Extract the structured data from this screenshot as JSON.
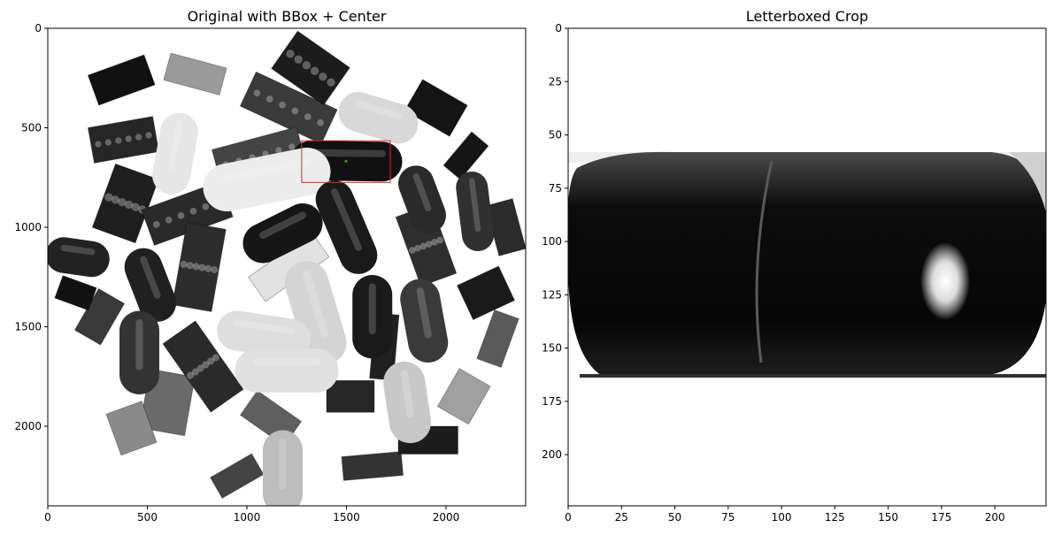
{
  "chart_data": [
    {
      "type": "image",
      "title": "Original with BBox + Center",
      "x_ticks": [
        0,
        500,
        1000,
        1500,
        2000
      ],
      "y_ticks": [
        0,
        500,
        1000,
        1500,
        2000
      ],
      "xlim": [
        0,
        2400
      ],
      "ylim": [
        2400,
        0
      ],
      "bbox": {
        "x_min": 1275,
        "y_min": 565,
        "x_max": 1720,
        "y_max": 775,
        "color": "#d62728"
      },
      "center": {
        "x": 1498,
        "y": 668,
        "color": "#2ca02c"
      },
      "objects": [
        {
          "kind": "capsule",
          "x1": 1320,
          "y1": 665,
          "x2": 1680,
          "y2": 670,
          "w": 200,
          "tone": "#111111"
        },
        {
          "kind": "capsule",
          "x1": 1560,
          "y1": 420,
          "x2": 1760,
          "y2": 480,
          "w": 200,
          "tone": "#d8d8d8"
        },
        {
          "kind": "capsule",
          "x1": 660,
          "y1": 520,
          "x2": 620,
          "y2": 740,
          "w": 190,
          "tone": "#e6e6e6"
        },
        {
          "kind": "capsule",
          "x1": 900,
          "y1": 800,
          "x2": 1300,
          "y2": 720,
          "w": 240,
          "tone": "#ececec"
        },
        {
          "kind": "capsule",
          "x1": 1080,
          "y1": 1080,
          "x2": 1280,
          "y2": 980,
          "w": 200,
          "tone": "#161616"
        },
        {
          "kind": "capsule",
          "x1": 1440,
          "y1": 860,
          "x2": 1560,
          "y2": 1140,
          "w": 190,
          "tone": "#1a1a1a"
        },
        {
          "kind": "capsule",
          "x1": 1850,
          "y1": 780,
          "x2": 1910,
          "y2": 940,
          "w": 180,
          "tone": "#2a2a2a"
        },
        {
          "kind": "capsule",
          "x1": 2130,
          "y1": 800,
          "x2": 2160,
          "y2": 1040,
          "w": 160,
          "tone": "#303030"
        },
        {
          "kind": "capsule",
          "x1": 80,
          "y1": 1140,
          "x2": 220,
          "y2": 1160,
          "w": 180,
          "tone": "#222222"
        },
        {
          "kind": "capsule",
          "x1": 480,
          "y1": 1200,
          "x2": 550,
          "y2": 1380,
          "w": 190,
          "tone": "#202020"
        },
        {
          "kind": "capsule",
          "x1": 1300,
          "y1": 1280,
          "x2": 1390,
          "y2": 1580,
          "w": 220,
          "tone": "#d4d4d4"
        },
        {
          "kind": "capsule",
          "x1": 1630,
          "y1": 1340,
          "x2": 1630,
          "y2": 1560,
          "w": 200,
          "tone": "#1a1a1a"
        },
        {
          "kind": "capsule",
          "x1": 1870,
          "y1": 1360,
          "x2": 1910,
          "y2": 1580,
          "w": 200,
          "tone": "#3a3a3a"
        },
        {
          "kind": "capsule",
          "x1": 950,
          "y1": 1520,
          "x2": 1220,
          "y2": 1560,
          "w": 200,
          "tone": "#dedede"
        },
        {
          "kind": "capsule",
          "x1": 1050,
          "y1": 1720,
          "x2": 1350,
          "y2": 1720,
          "w": 220,
          "tone": "#e0e0e0"
        },
        {
          "kind": "capsule",
          "x1": 460,
          "y1": 1520,
          "x2": 460,
          "y2": 1740,
          "w": 200,
          "tone": "#333333"
        },
        {
          "kind": "capsule",
          "x1": 1790,
          "y1": 1780,
          "x2": 1820,
          "y2": 1980,
          "w": 210,
          "tone": "#c8c8c8"
        },
        {
          "kind": "capsule",
          "x1": 1180,
          "y1": 2120,
          "x2": 1180,
          "y2": 2340,
          "w": 200,
          "tone": "#bdbdbd"
        },
        {
          "kind": "box",
          "cx": 390,
          "cy": 880,
          "w": 230,
          "h": 340,
          "rot": 20,
          "tone": "#1e1e1e"
        },
        {
          "kind": "box",
          "cx": 700,
          "cy": 930,
          "w": 420,
          "h": 190,
          "rot": -20,
          "tone": "#2a2a2a"
        },
        {
          "kind": "box",
          "cx": 1210,
          "cy": 400,
          "w": 450,
          "h": 190,
          "rot": 25,
          "tone": "#3a3a3a"
        },
        {
          "kind": "box",
          "cx": 1060,
          "cy": 640,
          "w": 440,
          "h": 180,
          "rot": -15,
          "tone": "#444444"
        },
        {
          "kind": "box",
          "cx": 380,
          "cy": 560,
          "w": 330,
          "h": 180,
          "rot": -10,
          "tone": "#262626"
        },
        {
          "kind": "box",
          "cx": 760,
          "cy": 1200,
          "w": 200,
          "h": 420,
          "rot": 10,
          "tone": "#2c2c2c"
        },
        {
          "kind": "box",
          "cx": 1210,
          "cy": 1200,
          "w": 390,
          "h": 150,
          "rot": -35,
          "tone": "#e2e2e2"
        },
        {
          "kind": "box",
          "cx": 1900,
          "cy": 1090,
          "w": 190,
          "h": 370,
          "rot": -20,
          "tone": "#2e2e2e"
        },
        {
          "kind": "box",
          "cx": 780,
          "cy": 1700,
          "w": 200,
          "h": 420,
          "rot": -35,
          "tone": "#2a2a2a"
        },
        {
          "kind": "box",
          "cx": 1320,
          "cy": 200,
          "w": 320,
          "h": 230,
          "rot": 35,
          "tone": "#1c1c1c"
        },
        {
          "kind": "plate",
          "cx": 370,
          "cy": 260,
          "w": 300,
          "h": 160,
          "rot": -20,
          "tone": "#111111"
        },
        {
          "kind": "plate",
          "cx": 740,
          "cy": 230,
          "w": 290,
          "h": 140,
          "rot": 15,
          "tone": "#9a9a9a"
        },
        {
          "kind": "plate",
          "cx": 1950,
          "cy": 400,
          "w": 260,
          "h": 180,
          "rot": 30,
          "tone": "#141414"
        },
        {
          "kind": "plate",
          "cx": 2200,
          "cy": 1330,
          "w": 230,
          "h": 190,
          "rot": -25,
          "tone": "#1a1a1a"
        },
        {
          "kind": "plate",
          "cx": 2260,
          "cy": 1560,
          "w": 130,
          "h": 260,
          "rot": 20,
          "tone": "#5a5a5a"
        },
        {
          "kind": "plate",
          "cx": 600,
          "cy": 1880,
          "w": 230,
          "h": 300,
          "rot": 10,
          "tone": "#6a6a6a"
        },
        {
          "kind": "plate",
          "cx": 420,
          "cy": 2010,
          "w": 190,
          "h": 220,
          "rot": -20,
          "tone": "#8a8a8a"
        },
        {
          "kind": "plate",
          "cx": 1520,
          "cy": 1850,
          "w": 240,
          "h": 160,
          "rot": 0,
          "tone": "#262626"
        },
        {
          "kind": "plate",
          "cx": 2090,
          "cy": 1850,
          "w": 180,
          "h": 220,
          "rot": 30,
          "tone": "#a0a0a0"
        },
        {
          "kind": "plate",
          "cx": 1630,
          "cy": 2200,
          "w": 300,
          "h": 120,
          "rot": -5,
          "tone": "#333333"
        },
        {
          "kind": "plate",
          "cx": 1910,
          "cy": 2070,
          "w": 300,
          "h": 140,
          "rot": 0,
          "tone": "#1c1c1c"
        },
        {
          "kind": "plate",
          "cx": 950,
          "cy": 2250,
          "w": 240,
          "h": 120,
          "rot": -30,
          "tone": "#444444"
        },
        {
          "kind": "plate",
          "cx": 260,
          "cy": 1450,
          "w": 150,
          "h": 240,
          "rot": 30,
          "tone": "#3a3a3a"
        },
        {
          "kind": "plate",
          "cx": 2300,
          "cy": 1000,
          "w": 140,
          "h": 260,
          "rot": -15,
          "tone": "#2b2b2b"
        },
        {
          "kind": "plate",
          "cx": 140,
          "cy": 1330,
          "w": 180,
          "h": 120,
          "rot": 20,
          "tone": "#111111"
        },
        {
          "kind": "plate",
          "cx": 1120,
          "cy": 1960,
          "w": 270,
          "h": 150,
          "rot": 35,
          "tone": "#5f5f5f"
        },
        {
          "kind": "plate",
          "cx": 1690,
          "cy": 1600,
          "w": 120,
          "h": 330,
          "rot": 5,
          "tone": "#202020"
        },
        {
          "kind": "plate",
          "cx": 2100,
          "cy": 640,
          "w": 110,
          "h": 220,
          "rot": 40,
          "tone": "#151515"
        }
      ]
    },
    {
      "type": "image",
      "title": "Letterboxed Crop",
      "x_ticks": [
        0,
        25,
        50,
        75,
        100,
        125,
        150,
        175,
        200
      ],
      "y_ticks": [
        0,
        25,
        50,
        75,
        100,
        125,
        150,
        175,
        200
      ],
      "xlim": [
        0,
        224
      ],
      "ylim": [
        224,
        0
      ],
      "content_extent": {
        "y_top": 58,
        "y_bottom": 163
      }
    }
  ]
}
